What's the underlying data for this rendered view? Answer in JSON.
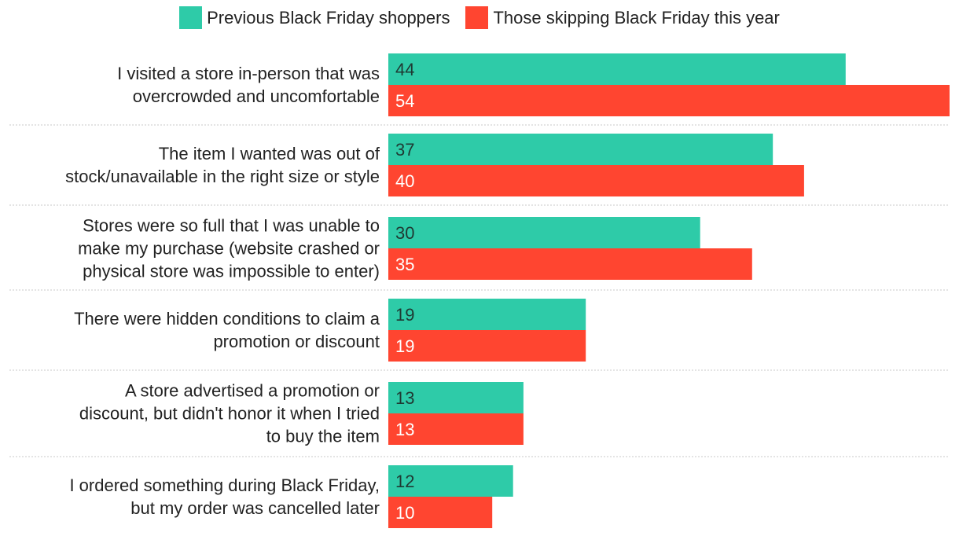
{
  "chart_data": {
    "type": "bar",
    "orientation": "horizontal",
    "categories": [
      "I visited a store in-person that was overcrowded and uncomfortable",
      "The item I wanted was out of stock/unavailable in the right size or style",
      "Stores were so full that I was unable to make my purchase (website crashed or physical store was impossible to enter)",
      "There were hidden conditions to claim a promotion or discount",
      "A store advertised a promotion or discount, but didn't honor it when I tried to buy the item",
      "I ordered something during Black Friday, but my order was cancelled later"
    ],
    "category_lines": [
      [
        "I visited a store in-person that was",
        "overcrowded and uncomfortable"
      ],
      [
        "The item I wanted was out of",
        "stock/unavailable in the right size or style"
      ],
      [
        "Stores were so full that I was unable to",
        "make my purchase (website crashed or",
        "physical store was impossible to enter)"
      ],
      [
        "There were hidden conditions to claim a",
        "promotion or discount"
      ],
      [
        "A store advertised a promotion or",
        "discount, but didn't honor it when I tried",
        "to buy the item"
      ],
      [
        "I ordered something during Black Friday,",
        "but my order was cancelled later"
      ]
    ],
    "series": [
      {
        "name": "Previous Black Friday shoppers",
        "color": "#2ECBA8",
        "values": [
          44,
          37,
          30,
          19,
          13,
          12
        ]
      },
      {
        "name": "Those skipping Black Friday this year",
        "color": "#FF4530",
        "values": [
          54,
          40,
          35,
          19,
          13,
          10
        ]
      }
    ],
    "xlim": [
      0,
      54
    ],
    "legend_position": "top-center",
    "grid": false,
    "data_labels": true
  }
}
